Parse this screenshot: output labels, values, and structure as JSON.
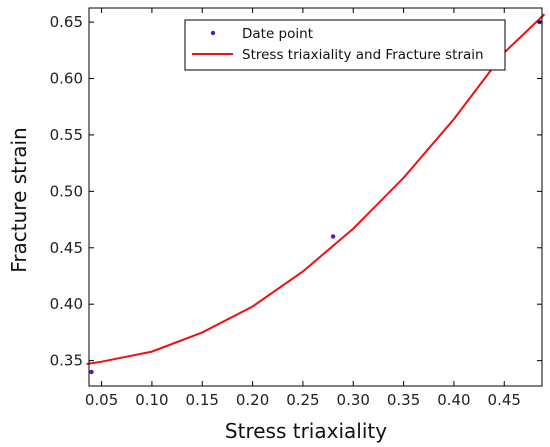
{
  "chart_data": {
    "type": "scatter",
    "title": "",
    "xlabel": "Stress triaxiality",
    "ylabel": "Fracture strain",
    "xlim": [
      0.0375,
      0.4875
    ],
    "ylim": [
      0.3275,
      0.6625
    ],
    "xticks": [
      "0.05",
      "0.10",
      "0.15",
      "0.20",
      "0.25",
      "0.30",
      "0.35",
      "0.40",
      "0.45"
    ],
    "yticks": [
      "0.35",
      "0.40",
      "0.45",
      "0.50",
      "0.55",
      "0.60",
      "0.65"
    ],
    "grid": false,
    "legend_position": "top-right",
    "series": [
      {
        "name": "Date point",
        "kind": "scatter",
        "color": "#5a1a9e",
        "x": [
          0.04,
          0.28,
          0.485
        ],
        "y": [
          0.34,
          0.46,
          0.65
        ]
      },
      {
        "name": "Stress triaxiality and Fracture strain",
        "kind": "line",
        "color": "#ee1111",
        "x": [
          0.035,
          0.05,
          0.1,
          0.15,
          0.2,
          0.25,
          0.3,
          0.35,
          0.4,
          0.45,
          0.49
        ],
        "y": [
          0.347,
          0.349,
          0.358,
          0.375,
          0.398,
          0.429,
          0.467,
          0.512,
          0.564,
          0.623,
          0.657
        ]
      }
    ]
  }
}
